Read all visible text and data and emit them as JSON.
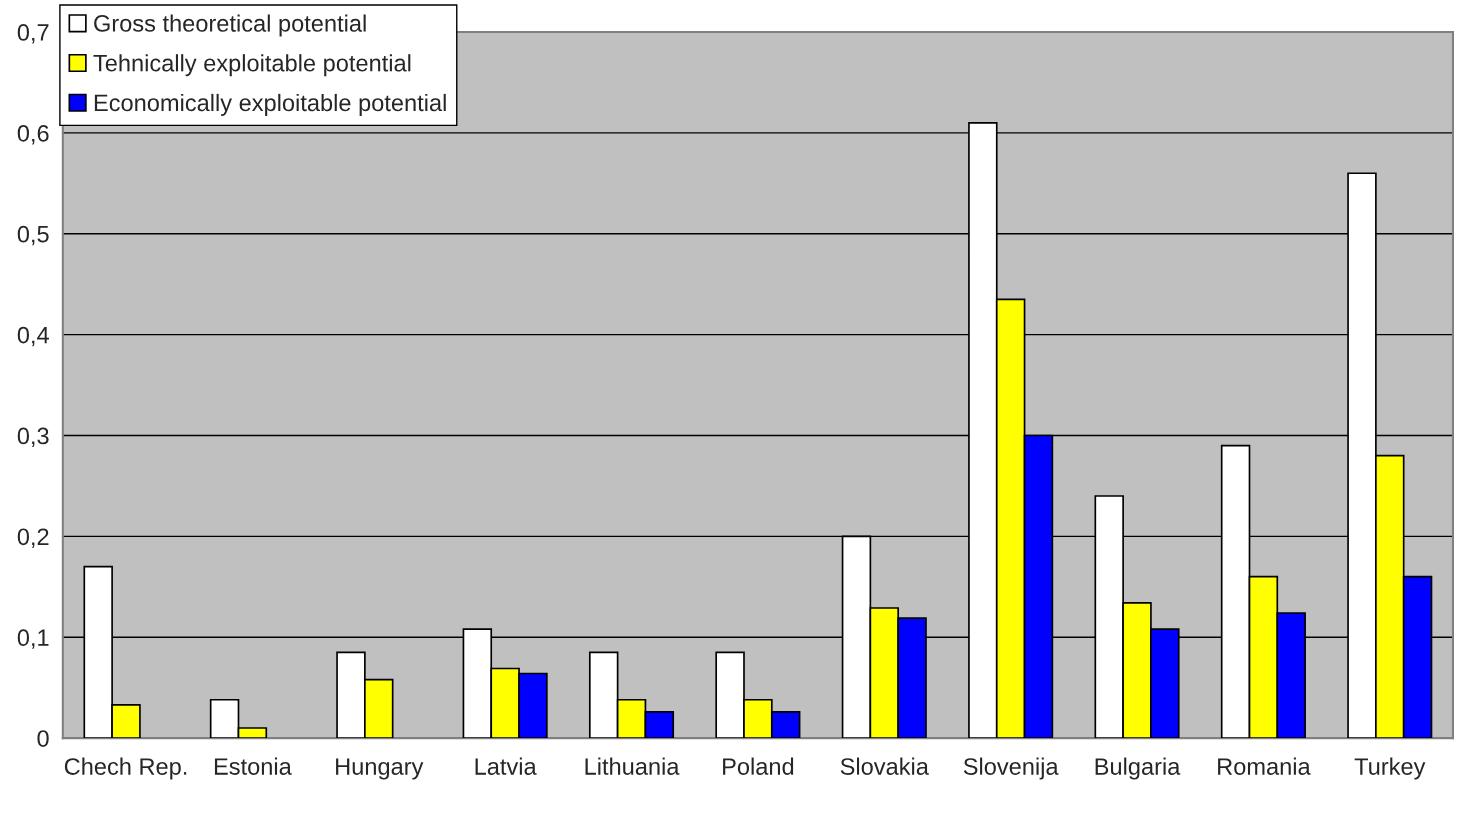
{
  "chart_data": {
    "type": "bar",
    "categories": [
      "Chech Rep.",
      "Estonia",
      "Hungary",
      "Latvia",
      "Lithuania",
      "Poland",
      "Slovakia",
      "Slovenija",
      "Bulgaria",
      "Romania",
      "Turkey"
    ],
    "series": [
      {
        "name": "Gross theoretical potential",
        "color": "#ffffff",
        "values": [
          0.17,
          0.038,
          0.085,
          0.108,
          0.085,
          0.085,
          0.2,
          0.61,
          0.24,
          0.29,
          0.56
        ]
      },
      {
        "name": "Tehnically exploitable potential",
        "color": "#ffff00",
        "values": [
          0.033,
          0.01,
          0.058,
          0.069,
          0.038,
          0.038,
          0.129,
          0.435,
          0.134,
          0.16,
          0.28
        ]
      },
      {
        "name": "Economically exploitable potential",
        "color": "#0000ff",
        "values": [
          null,
          null,
          null,
          0.064,
          0.026,
          0.026,
          0.119,
          0.3,
          0.108,
          0.124,
          0.16
        ]
      }
    ],
    "ylim": [
      0,
      0.7
    ],
    "yticks": [
      {
        "value": 0,
        "label": "0"
      },
      {
        "value": 0.1,
        "label": "0,1"
      },
      {
        "value": 0.2,
        "label": "0,2"
      },
      {
        "value": 0.3,
        "label": "0,3"
      },
      {
        "value": 0.4,
        "label": "0,4"
      },
      {
        "value": 0.5,
        "label": "0,5"
      },
      {
        "value": 0.6,
        "label": "0,6"
      },
      {
        "value": 0.7,
        "label": "0,7"
      }
    ],
    "grid": "y",
    "legend": "top left"
  }
}
